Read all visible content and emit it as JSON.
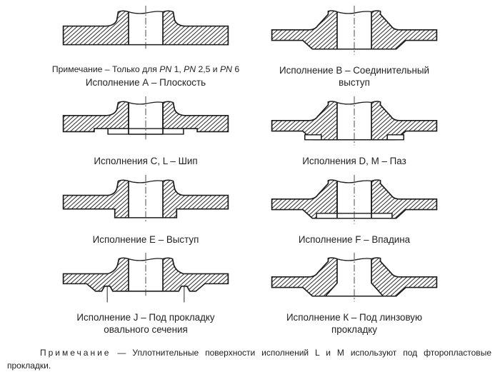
{
  "colors": {
    "background": "#ffffff",
    "line": "#1c1c1c",
    "hatch": "#2e2e2e",
    "text": "#222222"
  },
  "figures": [
    {
      "key": "A",
      "style": "flat",
      "caption": "Исполнение А – Плоскость",
      "note_parts": [
        {
          "t": "Примечание – Только для "
        },
        {
          "t": "PN",
          "italic": true
        },
        {
          "t": " 1, "
        },
        {
          "t": "PN",
          "italic": true
        },
        {
          "t": " 2,5 и "
        },
        {
          "t": "PN",
          "italic": true
        },
        {
          "t": " 6"
        }
      ]
    },
    {
      "key": "B",
      "style": "raised-face",
      "caption": "Исполнение В – Соединительный выступ"
    },
    {
      "key": "CL",
      "style": "tongue",
      "caption": "Исполнения C, L – Шип"
    },
    {
      "key": "DM",
      "style": "groove",
      "caption": "Исполнения D, М – Паз"
    },
    {
      "key": "E",
      "style": "spigot",
      "caption": "Исполнение Е – Выступ"
    },
    {
      "key": "F",
      "style": "recess",
      "caption": "Исполнение F – Впадина"
    },
    {
      "key": "J",
      "style": "oval-gasket",
      "caption": "Исполнение J – Под прокладку овального сечения"
    },
    {
      "key": "K",
      "style": "lens-gasket",
      "caption": "Исполнение К – Под линзовую прокладку"
    }
  ],
  "footnote": {
    "label": "Примечание",
    "text": " — Уплотнительные поверхности исполнений L и М используют под фторопластовые прокладки."
  }
}
